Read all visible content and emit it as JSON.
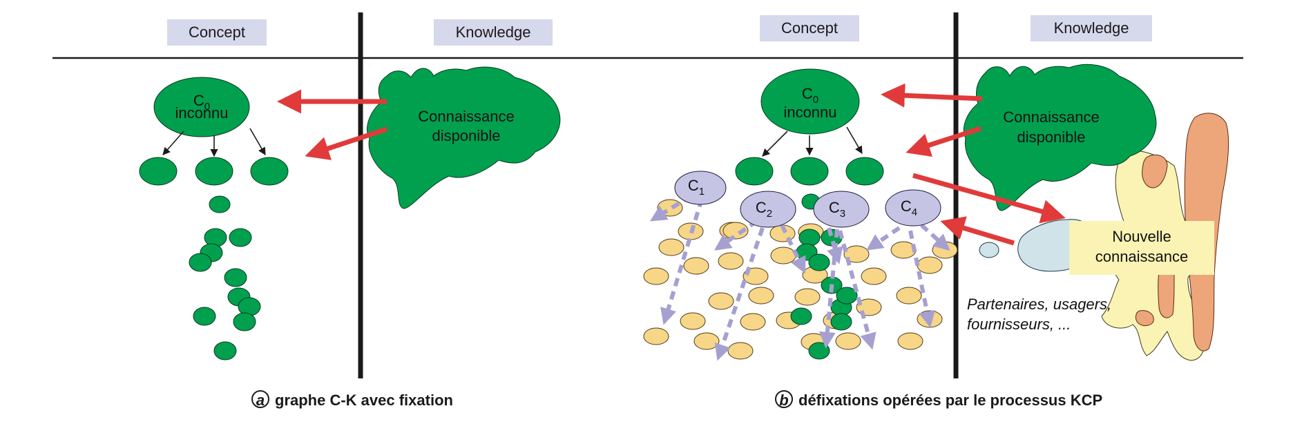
{
  "panel_a": {
    "concept_header": "Concept",
    "knowledge_header": "Knowledge",
    "c0_label": "C",
    "c0_sub": "0",
    "c0_line2": "inconnu",
    "knowledge_blob_line1": "Connaissance",
    "knowledge_blob_line2": "disponible",
    "caption_letter": "a",
    "caption_text": "graphe C-K avec fixation"
  },
  "panel_b": {
    "concept_header": "Concept",
    "knowledge_header": "Knowledge",
    "c0_label": "C",
    "c0_sub": "0",
    "c0_line2": "inconnu",
    "knowledge_blob_line1": "Connaissance",
    "knowledge_blob_line2": "disponible",
    "concept_nodes": [
      {
        "label": "C",
        "sub": "1"
      },
      {
        "label": "C",
        "sub": "2"
      },
      {
        "label": "C",
        "sub": "3"
      },
      {
        "label": "C",
        "sub": "4"
      }
    ],
    "new_knowledge_line1": "Nouvelle",
    "new_knowledge_line2": "connaissance",
    "partners_line1": "Partenaires, usagers,",
    "partners_line2": "fournisseurs, ...",
    "caption_letter": "b",
    "caption_text": "défixations opérées par le processus KCP"
  },
  "colors": {
    "green": "#00a04f",
    "yellow": "#f8d687",
    "lavender": "#c6c4e4",
    "lavender_arrow": "#a6a0d0",
    "red_arrow": "#e03a3a",
    "header_bg": "#d6d8ec",
    "salmon": "#eda57a",
    "pale_yellow": "#faf3b4",
    "pale_blue": "#cfe3e8"
  }
}
